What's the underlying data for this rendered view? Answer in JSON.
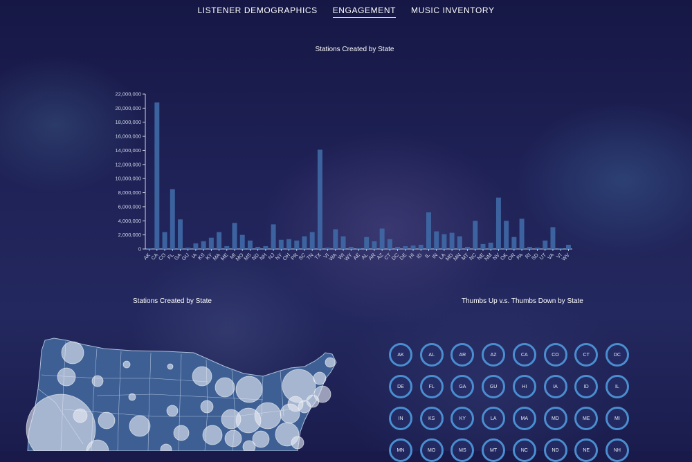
{
  "nav": {
    "items": [
      {
        "label": "LISTENER DEMOGRAPHICS",
        "active": false
      },
      {
        "label": "ENGAGEMENT",
        "active": true
      },
      {
        "label": "MUSIC INVENTORY",
        "active": false
      }
    ]
  },
  "map_panel": {
    "title": "Stations Created by State"
  },
  "thumbs_panel": {
    "title": "Thumbs Up v.s. Thumbs Down by State",
    "states": [
      "AK",
      "AL",
      "AR",
      "AZ",
      "CA",
      "CO",
      "CT",
      "DC",
      "DE",
      "FL",
      "GA",
      "GU",
      "HI",
      "IA",
      "ID",
      "IL",
      "IN",
      "KS",
      "KY",
      "LA",
      "MA",
      "MD",
      "ME",
      "MI",
      "MN",
      "MO",
      "MS",
      "MT",
      "NC",
      "ND",
      "NE",
      "NH"
    ]
  },
  "colors": {
    "bar": "#3f6aa6",
    "axis": "#cfd6e6",
    "ring": "#4a8ed0"
  },
  "chart_data": {
    "type": "bar",
    "title": "Stations Created by State",
    "ylim": [
      0,
      22000000
    ],
    "yticks": [
      "0",
      "2,000,000",
      "4,000,000",
      "6,000,000",
      "8,000,000",
      "10,000,000",
      "12,000,000",
      "14,000,000",
      "16,000,000",
      "18,000,000",
      "20,000,000",
      "22,000,000"
    ],
    "categories": [
      "AK",
      "CA",
      "CO",
      "FL",
      "GA",
      "GU",
      "IA",
      "KS",
      "KY",
      "MA",
      "ME",
      "MI",
      "MO",
      "MS",
      "ND",
      "NH",
      "NJ",
      "NY",
      "OH",
      "PR",
      "SC",
      "TN",
      "TX",
      "VI",
      "WA",
      "WI",
      "WY",
      "AE",
      "AL",
      "AR",
      "AZ",
      "CT",
      "DC",
      "DE",
      "HI",
      "ID",
      "IL",
      "IN",
      "LA",
      "MD",
      "MN",
      "MT",
      "NC",
      "NE",
      "NM",
      "NV",
      "OK",
      "OR",
      "PA",
      "RI",
      "SD",
      "UT",
      "VA",
      "VI",
      "WV"
    ],
    "values": [
      100000,
      20800000,
      2400000,
      8500000,
      4200000,
      200000,
      800000,
      1100000,
      1600000,
      2400000,
      400000,
      3700000,
      2000000,
      1200000,
      300000,
      400000,
      3500000,
      1300000,
      1400000,
      1200000,
      1800000,
      2400000,
      14100000,
      200000,
      2800000,
      1800000,
      300000,
      100000,
      1700000,
      1100000,
      2900000,
      1400000,
      300000,
      400000,
      500000,
      600000,
      5200000,
      2500000,
      2100000,
      2300000,
      1800000,
      300000,
      4000000,
      700000,
      900000,
      7300000,
      4000000,
      1700000,
      4300000,
      300000,
      200000,
      1200000,
      3100000,
      100000,
      600000
    ]
  }
}
